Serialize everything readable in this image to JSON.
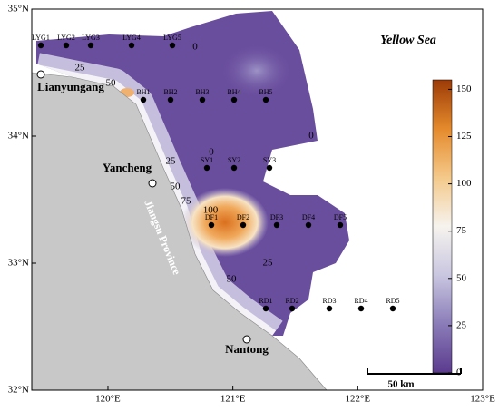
{
  "map": {
    "title": "Yellow Sea",
    "region_label": "Jiangsu Province",
    "scale_label": "50 km",
    "cities": [
      "Lianyungang",
      "Yancheng",
      "Nantong"
    ],
    "stations": [
      "LYG1",
      "LYG2",
      "LYG3",
      "LYG4",
      "LYG5",
      "BH1",
      "BH2",
      "BH3",
      "BH4",
      "BH5",
      "SY1",
      "SY2",
      "SY3",
      "DF1",
      "DF2",
      "DF3",
      "DF4",
      "DF5",
      "RD1",
      "RD2",
      "RD3",
      "RD4",
      "RD5"
    ],
    "contour_labels": [
      "25",
      "50",
      "0",
      "0",
      "0",
      "25",
      "50",
      "75",
      "100",
      "25",
      "50"
    ],
    "xlim": [
      119.39,
      123
    ],
    "xticks": [
      {
        "value": 120,
        "label": "120°E"
      },
      {
        "value": 121,
        "label": "121°E"
      },
      {
        "value": 122,
        "label": "122°E"
      },
      {
        "value": 123,
        "label": "123°E"
      }
    ],
    "ylim": [
      32,
      35
    ],
    "yticks": [
      {
        "value": 32,
        "label": "32°N"
      },
      {
        "value": 33,
        "label": "33°N"
      },
      {
        "value": 34,
        "label": "34°N"
      },
      {
        "value": 35,
        "label": "35°N"
      }
    ],
    "colorbar": {
      "lim": [
        0,
        155
      ],
      "ticks": [
        0,
        25,
        50,
        75,
        100,
        125,
        150
      ],
      "colors": [
        "#5b3a8e",
        "#8a7cb8",
        "#c9c6e0",
        "#f6f3ee",
        "#f4c98a",
        "#e58a2c",
        "#9c3b07"
      ]
    }
  }
}
